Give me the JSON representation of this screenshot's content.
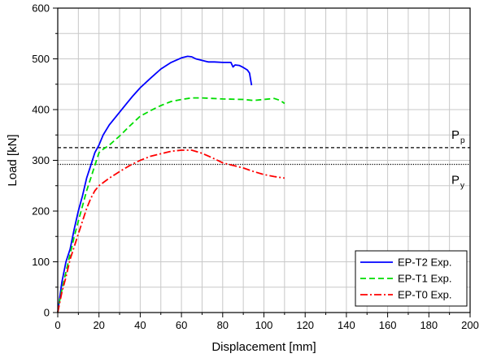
{
  "chart_data": {
    "type": "line",
    "xlabel": "Displacement [mm]",
    "ylabel": "Load [kN]",
    "xlim": [
      0,
      200
    ],
    "ylim": [
      0,
      600
    ],
    "x_ticks": [
      0,
      20,
      40,
      60,
      80,
      100,
      120,
      140,
      160,
      180,
      200
    ],
    "y_ticks": [
      0,
      100,
      200,
      300,
      400,
      500,
      600
    ],
    "grid": true,
    "legend_position": "bottom-right",
    "series": [
      {
        "name": "EP-T2 Exp.",
        "color": "#0000ff",
        "style": "solid",
        "x": [
          0,
          1,
          2,
          4,
          6,
          8,
          10,
          12,
          14,
          16,
          18,
          20,
          22,
          25,
          28,
          32,
          36,
          40,
          45,
          50,
          55,
          60,
          63,
          65,
          67,
          70,
          73,
          76,
          80,
          84,
          85,
          86,
          88,
          90,
          92,
          93,
          94
        ],
        "y": [
          0,
          30,
          60,
          100,
          125,
          165,
          200,
          230,
          265,
          290,
          315,
          330,
          350,
          370,
          385,
          405,
          425,
          443,
          462,
          480,
          493,
          502,
          505,
          504,
          500,
          497,
          494,
          494,
          493,
          493,
          484,
          488,
          487,
          483,
          478,
          472,
          448
        ]
      },
      {
        "name": "EP-T1 Exp.",
        "color": "#00dd00",
        "style": "dashed",
        "x": [
          0,
          1,
          2,
          4,
          6,
          8,
          10,
          12,
          14,
          16,
          18,
          20,
          22,
          25,
          30,
          35,
          40,
          45,
          50,
          55,
          60,
          65,
          70,
          80,
          90,
          95,
          100,
          105,
          108,
          110
        ],
        "y": [
          0,
          25,
          45,
          80,
          115,
          150,
          180,
          210,
          240,
          265,
          290,
          315,
          322,
          330,
          348,
          368,
          387,
          398,
          408,
          416,
          420,
          423,
          423,
          421,
          420,
          418,
          420,
          422,
          418,
          412
        ]
      },
      {
        "name": "EP-T0 Exp.",
        "color": "#ff0000",
        "style": "dashdot",
        "x": [
          0,
          1,
          2,
          4,
          6,
          8,
          10,
          12,
          14,
          16,
          18,
          20,
          25,
          30,
          35,
          40,
          45,
          50,
          55,
          60,
          65,
          70,
          75,
          80,
          85,
          90,
          95,
          100,
          105,
          110
        ],
        "y": [
          0,
          20,
          40,
          70,
          105,
          130,
          155,
          180,
          205,
          225,
          240,
          250,
          265,
          278,
          290,
          300,
          308,
          313,
          318,
          320,
          320,
          314,
          305,
          295,
          290,
          285,
          278,
          272,
          268,
          265
        ]
      }
    ],
    "reference_lines": [
      {
        "label": "P",
        "subscript": "p",
        "y": 325,
        "style": "dashed",
        "color": "#000000"
      },
      {
        "label": "P",
        "subscript": "y",
        "y": 292,
        "style": "dotted",
        "color": "#000000"
      }
    ]
  }
}
